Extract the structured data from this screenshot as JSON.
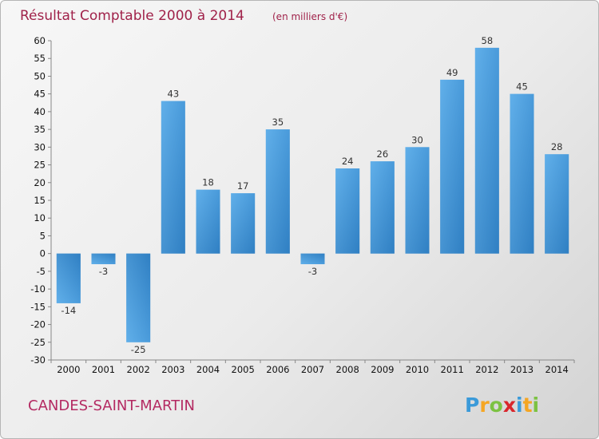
{
  "chart_data": {
    "type": "bar",
    "title": "Résultat Comptable 2000 à 2014",
    "subtitle": "(en milliers d'€)",
    "categories": [
      "2000",
      "2001",
      "2002",
      "2003",
      "2004",
      "2005",
      "2006",
      "2007",
      "2008",
      "2009",
      "2010",
      "2011",
      "2012",
      "2013",
      "2014"
    ],
    "values": [
      -14,
      -3,
      -25,
      43,
      18,
      17,
      35,
      -3,
      24,
      26,
      30,
      49,
      58,
      45,
      28
    ],
    "data_labels": [
      "-14",
      "-3",
      "-25",
      "43",
      "18",
      "17",
      "35",
      "-3",
      "24",
      "26",
      "30",
      "49",
      "58",
      "45",
      "28"
    ],
    "y_ticks": [
      60,
      55,
      50,
      45,
      40,
      35,
      30,
      25,
      20,
      15,
      10,
      5,
      0,
      -5,
      -10,
      -15,
      -20,
      -25,
      -30
    ],
    "ylim": [
      -30,
      60
    ],
    "grid": false,
    "bar_color": "#3d8fd1"
  },
  "footer": {
    "commune": "CANDES-SAINT-MARTIN",
    "logo": {
      "text": "Proxiti",
      "letters": [
        "P",
        "r",
        "o",
        "x",
        "i",
        "t",
        "i"
      ],
      "colors": [
        "#3a9ad9",
        "#f5a623",
        "#7cc242",
        "#d9262c",
        "#3a9ad9",
        "#f5a623",
        "#7cc242"
      ]
    }
  }
}
